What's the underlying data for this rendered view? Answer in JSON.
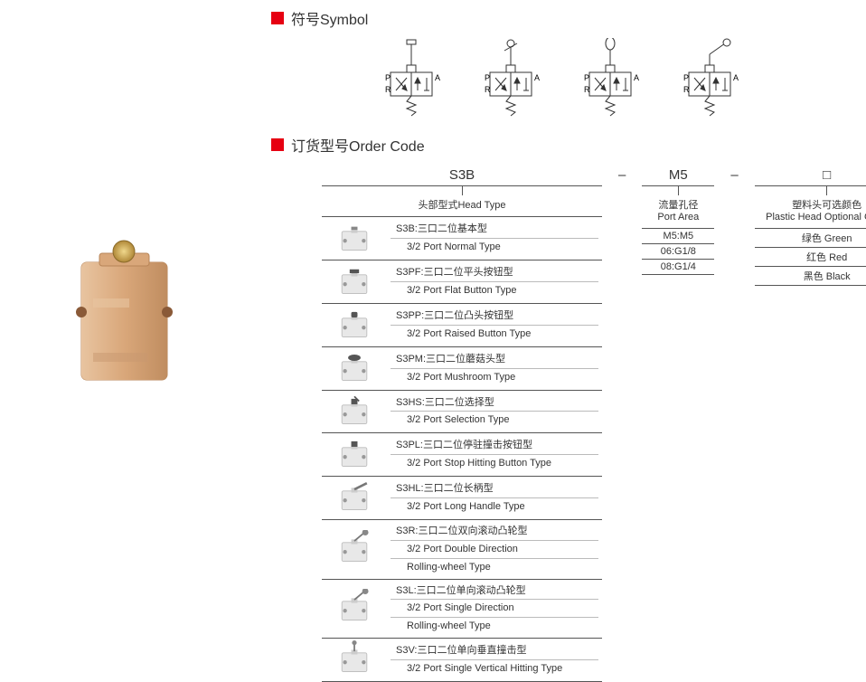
{
  "colors": {
    "accent": "#e60012",
    "line": "#333333"
  },
  "section_symbol": {
    "title": "符号Symbol"
  },
  "section_order": {
    "title": "订货型号Order Code"
  },
  "symbols": {
    "port_P": "P",
    "port_R": "R",
    "port_A": "A"
  },
  "order": {
    "col_a_head": "S3B",
    "col_b_head": "M5",
    "col_c_head": "□",
    "dash": "–",
    "head_type_label": "头部型式Head Type",
    "port_area_label_cn": "流量孔径",
    "port_area_label_en": "Port Area",
    "color_label_cn": "塑料头可选颜色",
    "color_label_en": "Plastic Head Optional Color"
  },
  "head_types": [
    {
      "code": "S3B:三口二位基本型",
      "en": "3/2 Port Normal Type"
    },
    {
      "code": "S3PF:三口二位平头按钮型",
      "en": "3/2 Port Flat Button Type"
    },
    {
      "code": "S3PP:三口二位凸头按钮型",
      "en": "3/2 Port Raised Button Type"
    },
    {
      "code": "S3PM:三口二位蘑菇头型",
      "en": "3/2 Port Mushroom Type"
    },
    {
      "code": "S3HS:三口二位选择型",
      "en": "3/2 Port Selection Type"
    },
    {
      "code": "S3PL:三口二位停驻撞击按钮型",
      "en": "3/2 Port Stop Hitting Button Type"
    },
    {
      "code": "S3HL:三口二位长柄型",
      "en": "3/2 Port Long Handle Type"
    },
    {
      "code": "S3R:三口二位双向滚动凸轮型",
      "en": "3/2 Port Double Direction",
      "en2": "Rolling-wheel Type"
    },
    {
      "code": "S3L:三口二位单向滚动凸轮型",
      "en": "3/2 Port Single Direction",
      "en2": "Rolling-wheel Type"
    },
    {
      "code": "S3V:三口二位单向垂直撞击型",
      "en": "3/2 Port Single Vertical Hitting Type"
    }
  ],
  "port_areas": [
    {
      "v": "M5:M5"
    },
    {
      "v": "06:G1/8"
    },
    {
      "v": "08:G1/4"
    }
  ],
  "color_opts": [
    {
      "v": "绿色 Green"
    },
    {
      "v": "红色 Red"
    },
    {
      "v": "黑色 Black"
    }
  ],
  "product": {
    "body_color": "#d9a77a",
    "body_shadow": "#b88558",
    "button_color": "#c9a050"
  }
}
